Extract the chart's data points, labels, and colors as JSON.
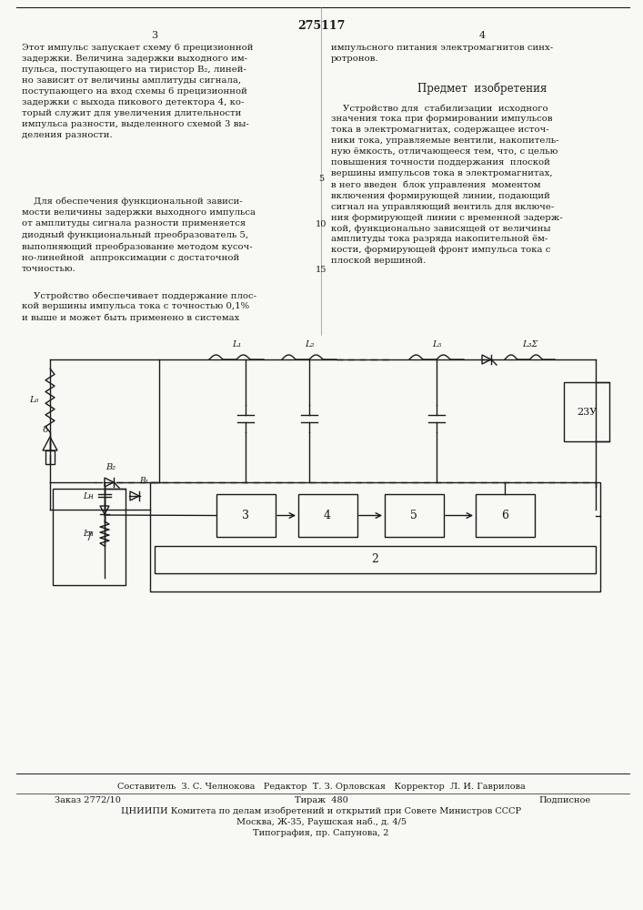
{
  "page_number": "275117",
  "col_left": "3",
  "col_right": "4",
  "bg_color": "#f8f8f4",
  "text_color": "#1a1a1a",
  "footer_line1": "Составитель  З. С. Челнокова   Редактор  Т. З. Орловская   Корректор  Л. И. Гаврилова",
  "footer_line2a": "Заказ 2772/10",
  "footer_line2b": "Тираж  480",
  "footer_line2c": "Подписное",
  "footer_line3": "ЦНИИПИ Комитета по делам изобретений и открытий при Совете Министров СССР",
  "footer_line4": "Москва, Ж-35, Раушская наб., д. 4/5",
  "footer_line5": "Типография, пр. Сапунова, 2"
}
